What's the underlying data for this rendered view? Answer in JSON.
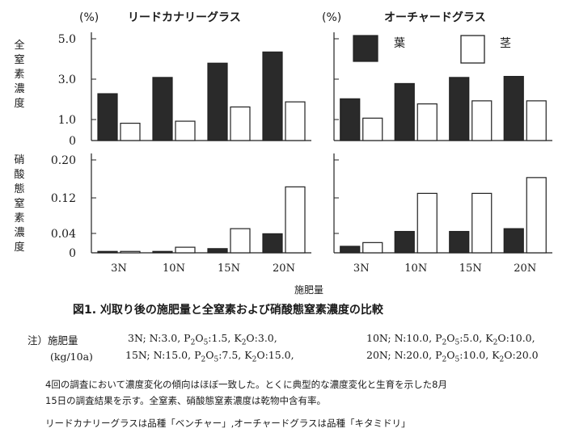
{
  "chart_data": [
    {
      "type": "bar",
      "title": "リードカナリーグラス",
      "unit": "(%)",
      "ylabel": "全窒素濃度",
      "categories": [
        "3N",
        "10N",
        "15N",
        "20N"
      ],
      "yticks": [
        "5.0",
        "3.0",
        "1.0",
        "0"
      ],
      "ylim": [
        0,
        5.0
      ],
      "series": [
        {
          "name": "葉",
          "color": "#2a2a2a",
          "values": [
            2.3,
            3.1,
            3.8,
            4.35
          ]
        },
        {
          "name": "茎",
          "color": "#ffffff",
          "values": [
            0.85,
            0.95,
            1.65,
            1.9
          ]
        }
      ]
    },
    {
      "type": "bar",
      "title": "オーチャードグラス",
      "unit": "(%)",
      "ylabel": "全窒素濃度",
      "categories": [
        "3N",
        "10N",
        "15N",
        "20N"
      ],
      "ylim": [
        0,
        5.0
      ],
      "series": [
        {
          "name": "葉",
          "color": "#2a2a2a",
          "values": [
            2.05,
            2.8,
            3.1,
            3.15
          ]
        },
        {
          "name": "茎",
          "color": "#ffffff",
          "values": [
            1.1,
            1.8,
            1.95,
            1.95
          ]
        }
      ]
    },
    {
      "type": "bar",
      "ylabel": "硝酸態窒素濃度",
      "categories": [
        "3N",
        "10N",
        "15N",
        "20N"
      ],
      "yticks": [
        "0.20",
        "0.12",
        "0.04",
        "0"
      ],
      "ylim": [
        0,
        0.2
      ],
      "series": [
        {
          "name": "葉",
          "color": "#2a2a2a",
          "values": [
            0.003,
            0.003,
            0.009,
            0.041
          ]
        },
        {
          "name": "茎",
          "color": "#ffffff",
          "values": [
            0.003,
            0.012,
            0.052,
            0.142
          ]
        }
      ]
    },
    {
      "type": "bar",
      "ylabel": "硝酸態窒素濃度",
      "categories": [
        "3N",
        "10N",
        "15N",
        "20N"
      ],
      "ylim": [
        0,
        0.2
      ],
      "series": [
        {
          "name": "葉",
          "color": "#2a2a2a",
          "values": [
            0.014,
            0.046,
            0.046,
            0.052
          ]
        },
        {
          "name": "茎",
          "color": "#ffffff",
          "values": [
            0.022,
            0.128,
            0.128,
            0.162
          ]
        }
      ]
    }
  ],
  "axis": {
    "ylabel_top": "全窒素濃度",
    "ylabel_bottom": "硝酸態窒素濃度",
    "xlabel": "施肥量",
    "unit": "(%)",
    "legend_leaf": "葉",
    "legend_stem": "茎"
  },
  "caption": "図1. 刈取り後の施肥量と全窒素および硝酸態窒素濃度の比較",
  "notes": {
    "label": "注）施肥量",
    "unit": "(kg/10a)",
    "rows": [
      [
        "3N; N:3.0, P",
        "O",
        ":1.5, K",
        "O:3.0,"
      ],
      [
        "15N; N:15.0, P",
        "O",
        ":7.5, K",
        "O:15.0,"
      ],
      [
        "10N; N:10.0, P",
        "O",
        ":5.0, K",
        "O:10.0,"
      ],
      [
        "20N; N:20.0, P",
        "O",
        ":10.0, K",
        "O:20.0"
      ]
    ],
    "para1_line1": "4回の調査において濃度変化の傾向はほぼ一致した。とくに典型的な濃度変化と生育を示した8月",
    "para1_line2": "15日の調査結果を示す。全窒素、硝酸態窒素濃度は乾物中含有率。",
    "para2": "リードカナリーグラスは品種「ベンチャー」,オーチャードグラスは品種「キタミドリ」"
  }
}
